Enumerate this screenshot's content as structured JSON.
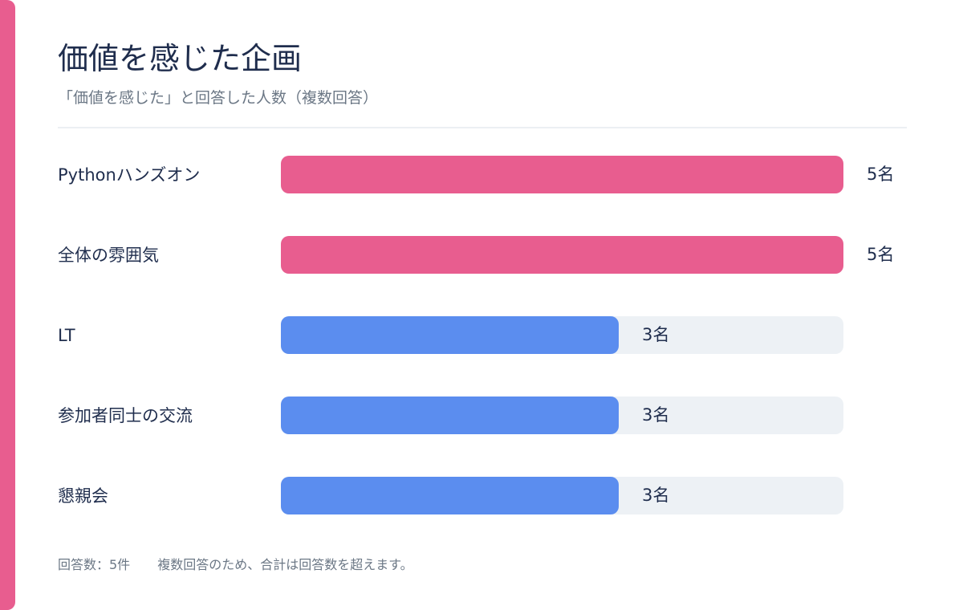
{
  "title": "価値を感じた企画",
  "subtitle": "「価値を感じた」と回答した人数（複数回答）",
  "footer": {
    "responses": "回答数：5件",
    "note": "複数回答のため、合計は回答数を超えます。"
  },
  "colors": {
    "accent": "#e85d8f",
    "top": "#e85d8f",
    "other": "#5b8def",
    "track": "#edf1f5",
    "text": "#1f2d4d",
    "muted": "#6b7785"
  },
  "chart_data": {
    "type": "bar",
    "orientation": "horizontal",
    "title": "価値を感じた企画",
    "subtitle": "「価値を感じた」と回答した人数（複数回答）",
    "categories": [
      "Pythonハンズオン",
      "全体の雰囲気",
      "LT",
      "参加者同士の交流",
      "懇親会"
    ],
    "values": [
      5,
      5,
      3,
      3,
      3
    ],
    "value_labels": [
      "5名",
      "5名",
      "3名",
      "3名",
      "3名"
    ],
    "max": 5,
    "unit": "名"
  }
}
